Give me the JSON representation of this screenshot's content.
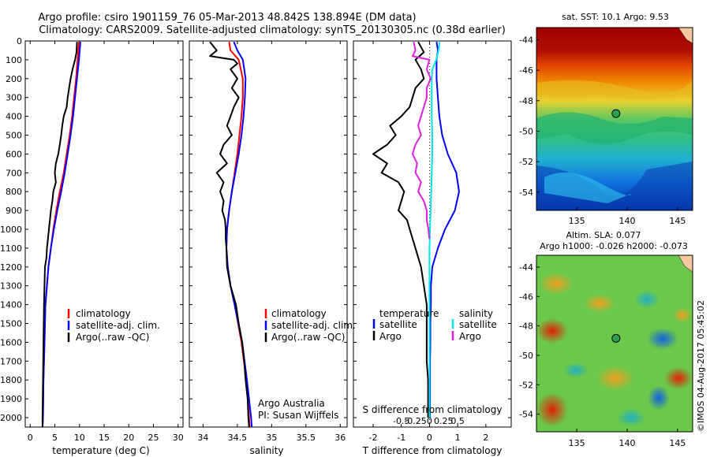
{
  "header": {
    "title_line1": "Argo profile: csiro 1901159_76 05-Mar-2013 48.842S 138.894E (DM data)",
    "title_line2": "Climatology: CARS2009. Satellite-adjusted climatology: synTS_20130305.nc (0.38d earlier)"
  },
  "colors": {
    "climatology": "#ff0000",
    "satellite": "#0000ff",
    "argo": "#000000",
    "salinity_satellite": "#00e5e5",
    "salinity_argo": "#e020e0"
  },
  "footer": {
    "argo_australia": "Argo Australia",
    "pi": "PI: Susan Wijffels",
    "timestamp": "©IMOS 04-Aug-2017 05:45:02"
  },
  "legend_temp": [
    "climatology",
    "satellite-adj. clim.",
    "Argo(..raw -QC)"
  ],
  "legend_sal": [
    "climatology",
    "satellite-adj. clim.",
    "Argo(..raw -QC)"
  ],
  "legend_diff": {
    "temp_header": "temperature",
    "sal_header": "salinity",
    "temp_items": [
      "satellite",
      "Argo"
    ],
    "sal_items": [
      "satellite",
      "Argo"
    ]
  },
  "maps": {
    "sst_title": "sat. SST: 10.1  Argo: 9.53",
    "sla_title1": "Altim. SLA: 0.077",
    "sla_title2": "Argo h1000: -0.026 h2000: -0.073",
    "lat_ticks": [
      -44,
      -46,
      -48,
      -50,
      -52,
      -54
    ],
    "lon_ticks": [
      135,
      140,
      145
    ],
    "lat_range": [
      -55.2,
      -43.2
    ],
    "lon_range": [
      131,
      146.5
    ],
    "float_position": {
      "lon": 138.894,
      "lat": -48.842
    }
  },
  "chart_data": [
    {
      "type": "line",
      "name": "temperature",
      "xlabel": "temperature (deg C)",
      "ylabel": "",
      "xlim": [
        -1,
        31
      ],
      "ylim": [
        2050,
        0
      ],
      "xticks": [
        0,
        5,
        10,
        15,
        20,
        25,
        30
      ],
      "yticks": [
        0,
        100,
        200,
        300,
        400,
        500,
        600,
        700,
        800,
        900,
        1000,
        1100,
        1200,
        1300,
        1400,
        1500,
        1600,
        1700,
        1800,
        1900,
        2000
      ],
      "series": [
        {
          "name": "climatology",
          "color": "#ff0000",
          "depth": [
            5,
            100,
            200,
            300,
            400,
            500,
            600,
            700,
            800,
            900,
            1000,
            1100,
            1200,
            1300,
            1400,
            1600,
            1800,
            2000,
            2050
          ],
          "values": [
            9.9,
            9.6,
            9.3,
            8.9,
            8.5,
            8.0,
            7.4,
            6.8,
            6.0,
            5.3,
            4.7,
            4.2,
            3.7,
            3.4,
            3.1,
            2.9,
            2.7,
            2.6,
            2.5
          ]
        },
        {
          "name": "satellite-adj. clim.",
          "color": "#0000ff",
          "depth": [
            5,
            100,
            200,
            300,
            400,
            500,
            600,
            700,
            800,
            900,
            1000,
            1100,
            1200,
            1300,
            1400,
            1600,
            1800,
            2000,
            2050
          ],
          "values": [
            10.2,
            9.9,
            9.5,
            9.1,
            8.7,
            8.2,
            7.6,
            7.0,
            6.3,
            5.5,
            4.8,
            4.2,
            3.7,
            3.4,
            3.1,
            2.9,
            2.7,
            2.6,
            2.5
          ]
        },
        {
          "name": "Argo(..raw -QC)",
          "color": "#000000",
          "depth": [
            5,
            60,
            100,
            150,
            200,
            250,
            300,
            350,
            400,
            450,
            500,
            550,
            600,
            650,
            700,
            750,
            800,
            850,
            900,
            950,
            1000,
            1050,
            1100,
            1150,
            1200,
            1300,
            1400,
            1600,
            1800,
            2000,
            2050
          ],
          "values": [
            9.5,
            9.4,
            9.1,
            8.6,
            8.2,
            7.9,
            7.6,
            7.4,
            6.8,
            6.5,
            6.3,
            6.0,
            5.7,
            5.2,
            5.0,
            5.2,
            4.7,
            4.5,
            4.2,
            4.0,
            3.8,
            3.6,
            3.4,
            3.3,
            3.0,
            2.9,
            2.8,
            2.7,
            2.6,
            2.5,
            2.5
          ]
        }
      ]
    },
    {
      "type": "line",
      "name": "salinity",
      "xlabel": "salinity",
      "ylabel": "",
      "xlim": [
        33.8,
        36.1
      ],
      "ylim": [
        2050,
        0
      ],
      "xticks": [
        34,
        34.5,
        35,
        35.5,
        36
      ],
      "series": [
        {
          "name": "climatology",
          "color": "#ff0000",
          "depth": [
            5,
            50,
            100,
            150,
            200,
            300,
            400,
            500,
            600,
            700,
            800,
            900,
            1000,
            1100,
            1200,
            1300,
            1400,
            1600,
            1800,
            2000,
            2050
          ],
          "values": [
            34.38,
            34.4,
            34.52,
            34.55,
            34.58,
            34.58,
            34.56,
            34.53,
            34.5,
            34.46,
            34.42,
            34.38,
            34.35,
            34.34,
            34.36,
            34.4,
            34.46,
            34.56,
            34.63,
            34.67,
            34.68
          ]
        },
        {
          "name": "satellite-adj. clim.",
          "color": "#0000ff",
          "depth": [
            5,
            50,
            100,
            150,
            200,
            300,
            400,
            500,
            600,
            700,
            800,
            900,
            1000,
            1100,
            1200,
            1300,
            1400,
            1600,
            1800,
            2000,
            2050
          ],
          "values": [
            34.45,
            34.5,
            34.58,
            34.6,
            34.62,
            34.61,
            34.59,
            34.56,
            34.52,
            34.47,
            34.42,
            34.38,
            34.35,
            34.34,
            34.36,
            34.4,
            34.46,
            34.57,
            34.64,
            34.7,
            34.71
          ]
        },
        {
          "name": "Argo(..raw -QC)",
          "color": "#000000",
          "depth": [
            5,
            50,
            80,
            100,
            120,
            150,
            200,
            250,
            300,
            350,
            400,
            450,
            500,
            550,
            600,
            650,
            700,
            750,
            800,
            850,
            900,
            950,
            1000,
            1050,
            1100,
            1200,
            1300,
            1400,
            1500,
            1600,
            1700,
            1800,
            1900,
            2000,
            2050
          ],
          "values": [
            34.1,
            34.2,
            34.1,
            34.45,
            34.5,
            34.4,
            34.5,
            34.42,
            34.52,
            34.45,
            34.4,
            34.35,
            34.42,
            34.3,
            34.25,
            34.35,
            34.2,
            34.3,
            34.25,
            34.3,
            34.28,
            34.32,
            34.33,
            34.33,
            34.34,
            34.35,
            34.4,
            34.48,
            34.52,
            34.57,
            34.6,
            34.62,
            34.65,
            34.66,
            34.67
          ]
        }
      ]
    },
    {
      "type": "line",
      "name": "difference from climatology",
      "xlabel": "T difference from climatology",
      "xlabel_top": "S difference from climatology",
      "xlim": [
        -2.7,
        2.9
      ],
      "ylim": [
        2050,
        0
      ],
      "xticks": [
        -2,
        -1,
        0,
        1,
        2
      ],
      "xticks_sal": [
        -0.5,
        -0.25,
        0,
        0.25,
        0.5
      ],
      "series": [
        {
          "name": "temperature satellite",
          "color": "#0000ff",
          "depth": [
            5,
            50,
            100,
            200,
            300,
            400,
            500,
            600,
            700,
            800,
            900,
            1000,
            1100,
            1200,
            1300,
            1400,
            1500,
            1600,
            1700,
            1800,
            1900,
            2000
          ],
          "values": [
            0.25,
            0.3,
            0.25,
            0.25,
            0.3,
            0.35,
            0.45,
            0.65,
            0.95,
            1.05,
            0.9,
            0.55,
            0.3,
            0.1,
            0.05,
            0.05,
            0.03,
            0.03,
            0.02,
            0.02,
            0.02,
            0.02
          ]
        },
        {
          "name": "temperature Argo",
          "color": "#000000",
          "depth": [
            5,
            60,
            100,
            150,
            200,
            250,
            300,
            350,
            400,
            450,
            500,
            550,
            600,
            650,
            700,
            750,
            800,
            850,
            900,
            950,
            1000,
            1100,
            1200,
            1300,
            1400,
            1500,
            1600,
            1700,
            1800,
            1900,
            2000
          ],
          "values": [
            -0.4,
            -0.2,
            -0.5,
            -0.3,
            -0.2,
            -0.5,
            -0.6,
            -0.7,
            -1.0,
            -1.4,
            -1.2,
            -1.5,
            -2.0,
            -1.5,
            -1.7,
            -1.1,
            -0.9,
            -1.0,
            -1.1,
            -0.8,
            -0.7,
            -0.5,
            -0.3,
            -0.2,
            -0.1,
            -0.1,
            -0.1,
            -0.1,
            -0.05,
            -0.05,
            -0.05
          ]
        },
        {
          "name": "salinity satellite",
          "color": "#00e5e5",
          "depth": [
            5,
            50,
            100,
            150,
            200,
            300,
            400,
            500,
            600,
            700,
            800,
            900,
            1000,
            1100,
            1200,
            1300,
            1400,
            1500,
            1600,
            1700,
            1800,
            1900,
            2000
          ],
          "values": [
            0.18,
            0.16,
            0.12,
            0.05,
            0.04,
            0.04,
            0.04,
            0.05,
            0.05,
            0.04,
            0.03,
            0.02,
            0.01,
            0.0,
            0.0,
            0.0,
            0.0,
            0.0,
            0.0,
            0.0,
            0.0,
            0.0,
            0.0
          ]
        },
        {
          "name": "salinity Argo",
          "color": "#e020e0",
          "depth": [
            5,
            50,
            80,
            100,
            150,
            200,
            250,
            300,
            350,
            400,
            450,
            500,
            550,
            600,
            650,
            700,
            750,
            800,
            850,
            900,
            950,
            1000,
            1050
          ],
          "values": [
            -0.28,
            -0.25,
            -0.3,
            0.0,
            -0.05,
            0.02,
            -0.05,
            -0.05,
            -0.1,
            -0.15,
            -0.2,
            -0.15,
            -0.25,
            -0.3,
            -0.22,
            -0.25,
            -0.15,
            -0.2,
            -0.1,
            -0.05,
            -0.05,
            -0.02,
            0.0
          ]
        }
      ]
    }
  ]
}
